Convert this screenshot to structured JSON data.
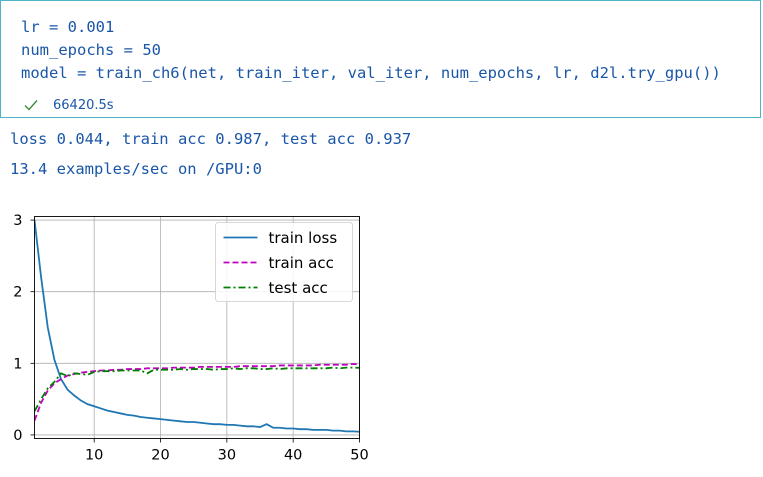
{
  "code": {
    "line1": "lr = 0.001",
    "line2": "num_epochs = 50",
    "line3": "model = train_ch6(net, train_iter, val_iter, num_epochs, lr, d2l.try_gpu())",
    "exec_time": "66420.5s"
  },
  "output": {
    "line1": "loss 0.044, train acc 0.987, test acc 0.937",
    "line2": "13.4 examples/sec on /GPU:0"
  },
  "colors": {
    "code_text": "#1a56a8",
    "cell_border": "#4fb3c6",
    "check": "#3c8c3c",
    "train_loss": "#1f77b4",
    "train_acc": "#bf00bf",
    "test_acc": "#008000"
  },
  "icons": {
    "status": "check-icon"
  },
  "chart_data": {
    "type": "line",
    "title": "",
    "xlabel": "",
    "ylabel": "",
    "xlim": [
      1,
      50
    ],
    "ylim": [
      -0.05,
      3.05
    ],
    "x_ticks": [
      10,
      20,
      30,
      40,
      50
    ],
    "y_ticks": [
      0,
      1,
      2,
      3
    ],
    "grid": true,
    "legend_position": "top-right",
    "series": [
      {
        "name": "train loss",
        "style": "solid",
        "color": "#1f77b4",
        "x": [
          1,
          2,
          3,
          4,
          5,
          6,
          7,
          8,
          9,
          10,
          11,
          12,
          13,
          14,
          15,
          16,
          17,
          18,
          19,
          20,
          21,
          22,
          23,
          24,
          25,
          26,
          27,
          28,
          29,
          30,
          31,
          32,
          33,
          34,
          35,
          36,
          37,
          38,
          39,
          40,
          41,
          42,
          43,
          44,
          45,
          46,
          47,
          48,
          49,
          50
        ],
        "y": [
          3.0,
          2.2,
          1.5,
          1.05,
          0.78,
          0.63,
          0.55,
          0.48,
          0.43,
          0.4,
          0.37,
          0.34,
          0.32,
          0.3,
          0.28,
          0.27,
          0.25,
          0.24,
          0.23,
          0.22,
          0.21,
          0.2,
          0.19,
          0.18,
          0.18,
          0.17,
          0.16,
          0.15,
          0.15,
          0.14,
          0.14,
          0.13,
          0.12,
          0.12,
          0.11,
          0.15,
          0.1,
          0.1,
          0.09,
          0.09,
          0.08,
          0.08,
          0.07,
          0.07,
          0.07,
          0.06,
          0.06,
          0.05,
          0.05,
          0.044
        ]
      },
      {
        "name": "train acc",
        "style": "dashed",
        "color": "#bf00bf",
        "x": [
          1,
          2,
          3,
          4,
          5,
          6,
          7,
          8,
          9,
          10,
          11,
          12,
          13,
          14,
          15,
          16,
          17,
          18,
          19,
          20,
          21,
          22,
          23,
          24,
          25,
          26,
          27,
          28,
          29,
          30,
          31,
          32,
          33,
          34,
          35,
          36,
          37,
          38,
          39,
          40,
          41,
          42,
          43,
          44,
          45,
          46,
          47,
          48,
          49,
          50
        ],
        "y": [
          0.2,
          0.45,
          0.62,
          0.72,
          0.78,
          0.83,
          0.85,
          0.87,
          0.88,
          0.89,
          0.9,
          0.9,
          0.91,
          0.91,
          0.92,
          0.92,
          0.92,
          0.93,
          0.93,
          0.93,
          0.93,
          0.94,
          0.94,
          0.94,
          0.94,
          0.95,
          0.95,
          0.95,
          0.95,
          0.95,
          0.95,
          0.96,
          0.96,
          0.96,
          0.96,
          0.96,
          0.96,
          0.97,
          0.97,
          0.97,
          0.97,
          0.97,
          0.97,
          0.98,
          0.98,
          0.98,
          0.98,
          0.98,
          0.99,
          0.987
        ]
      },
      {
        "name": "test acc",
        "style": "dashdot",
        "color": "#008000",
        "x": [
          1,
          2,
          3,
          4,
          5,
          6,
          7,
          8,
          9,
          10,
          11,
          12,
          13,
          14,
          15,
          16,
          17,
          18,
          19,
          20,
          21,
          22,
          23,
          24,
          25,
          26,
          27,
          28,
          29,
          30,
          31,
          32,
          33,
          34,
          35,
          36,
          37,
          38,
          39,
          40,
          41,
          42,
          43,
          44,
          45,
          46,
          47,
          48,
          49,
          50
        ],
        "y": [
          0.33,
          0.5,
          0.65,
          0.74,
          0.86,
          0.82,
          0.86,
          0.85,
          0.84,
          0.88,
          0.89,
          0.89,
          0.89,
          0.9,
          0.9,
          0.9,
          0.9,
          0.86,
          0.91,
          0.91,
          0.91,
          0.91,
          0.92,
          0.91,
          0.92,
          0.92,
          0.92,
          0.91,
          0.92,
          0.92,
          0.93,
          0.92,
          0.93,
          0.93,
          0.92,
          0.92,
          0.93,
          0.92,
          0.93,
          0.93,
          0.93,
          0.93,
          0.93,
          0.93,
          0.93,
          0.94,
          0.93,
          0.94,
          0.94,
          0.937
        ]
      }
    ]
  }
}
